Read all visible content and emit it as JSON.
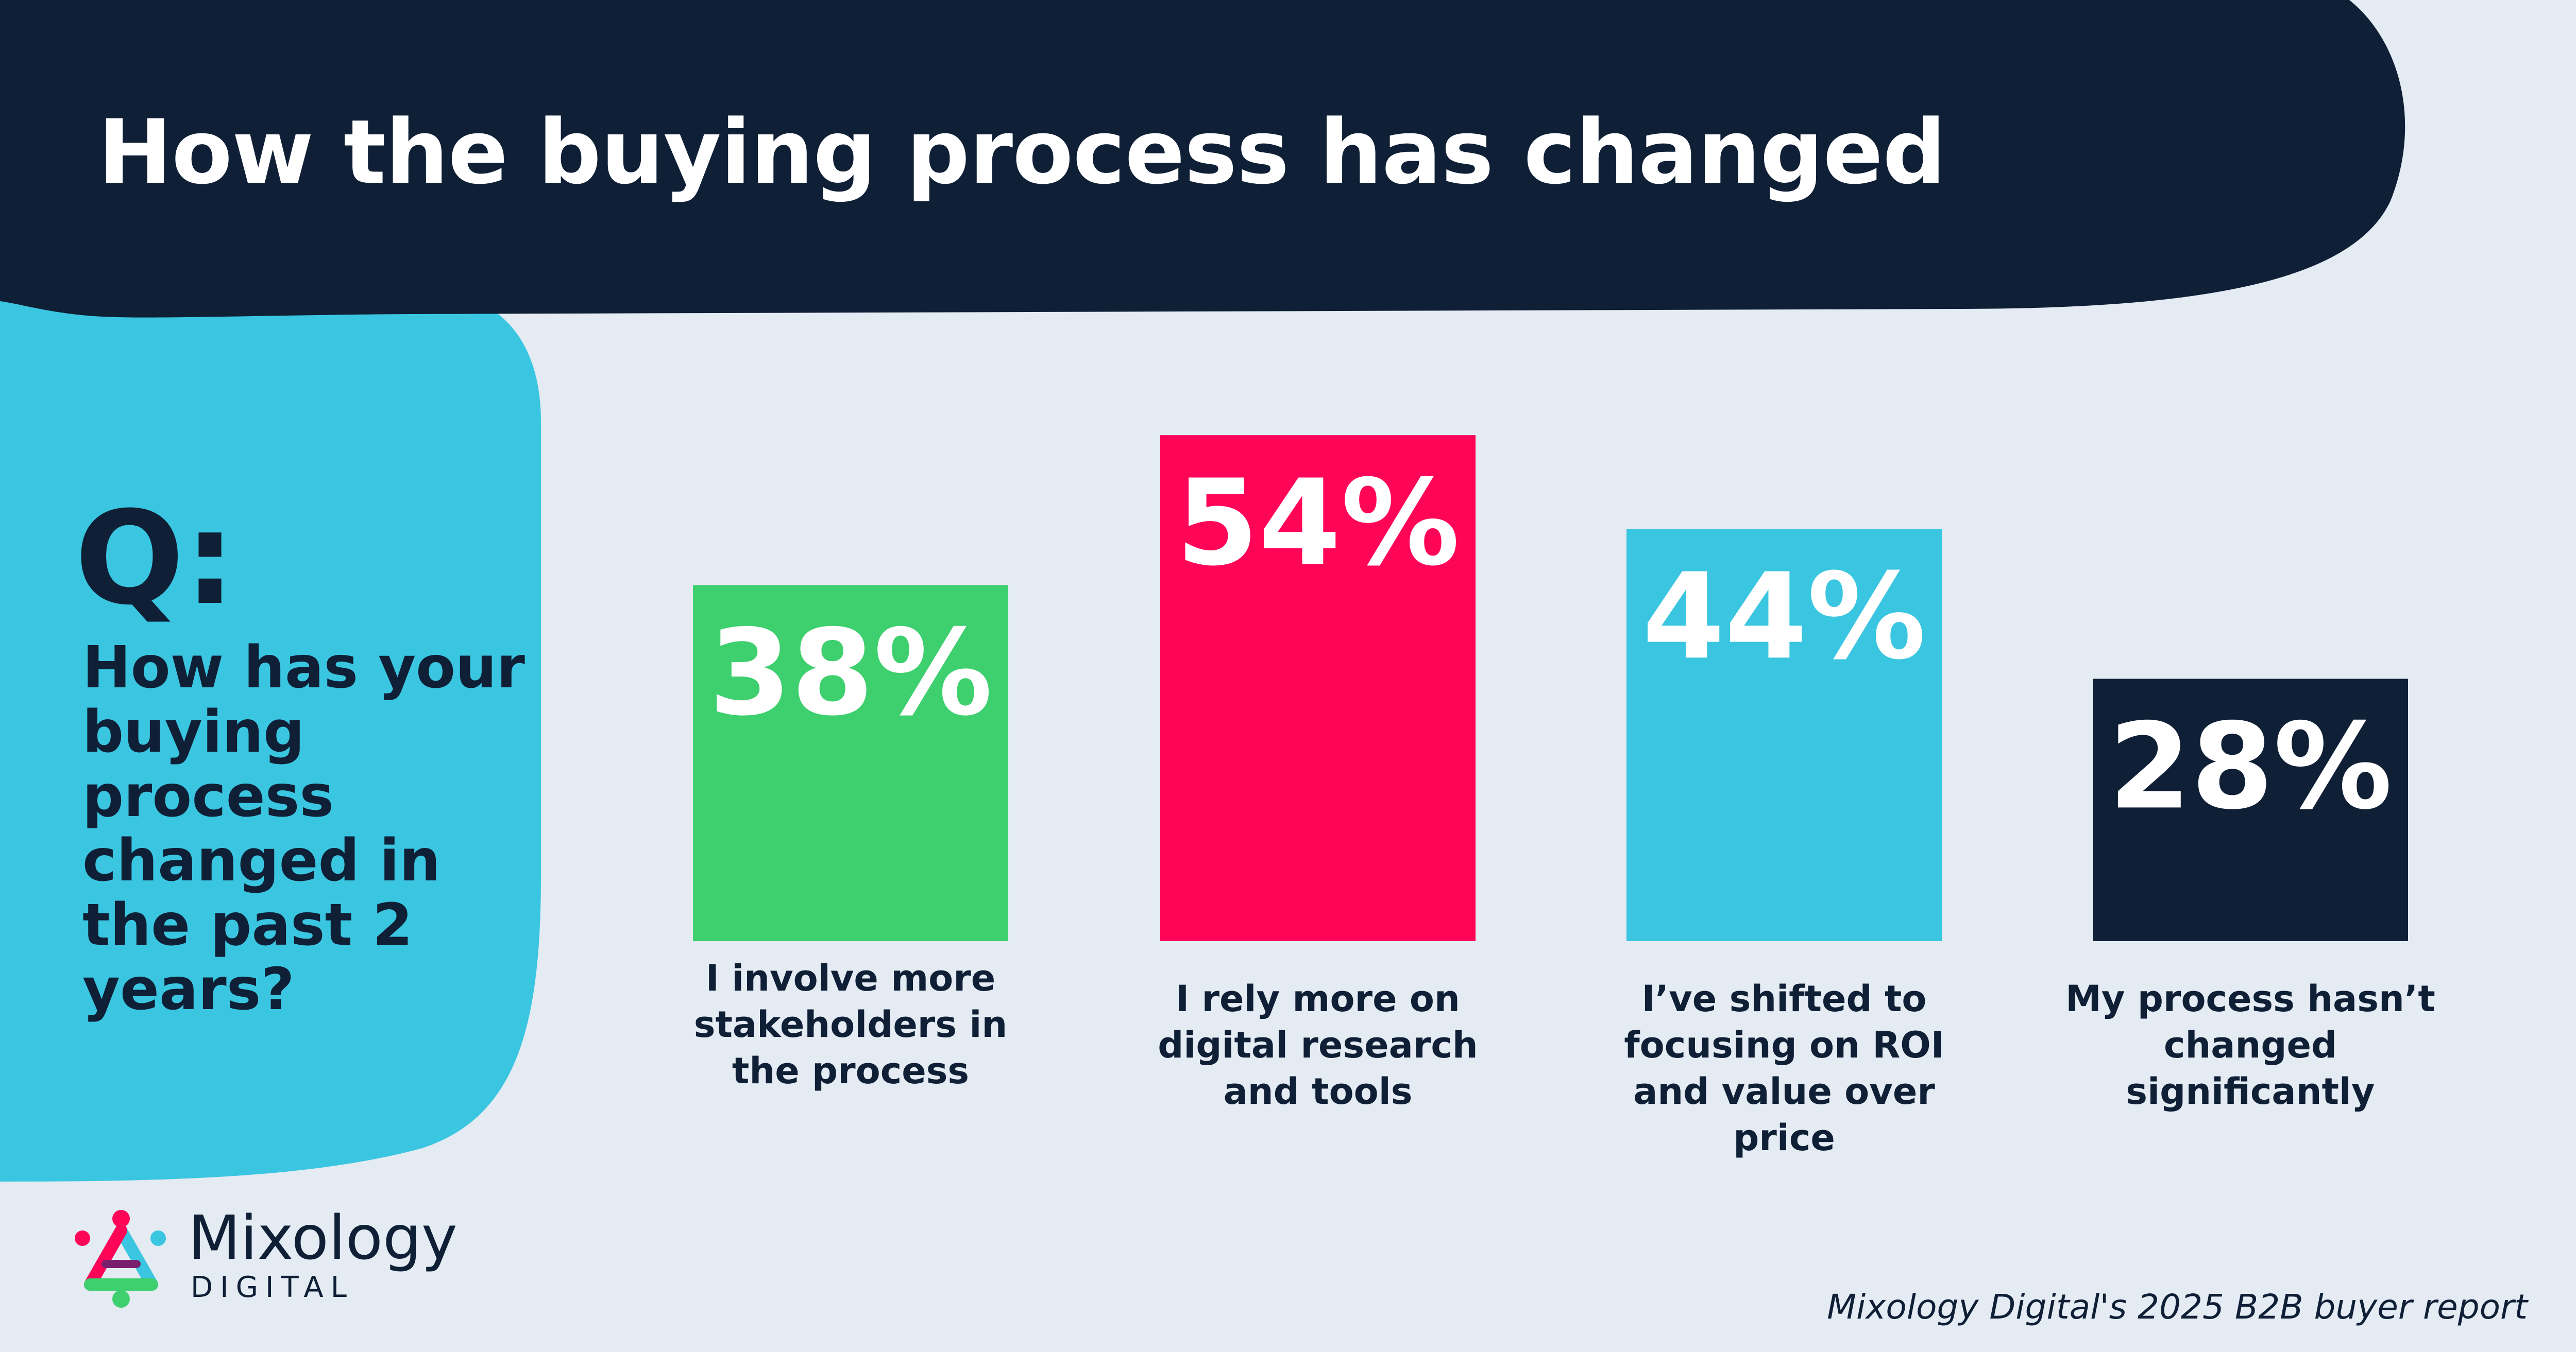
{
  "header": {
    "title": "How the buying process has changed"
  },
  "question": {
    "prefix": "Q:",
    "text": "How has your buying process changed in the past 2 years?"
  },
  "chart_data": {
    "type": "bar",
    "title": "How the buying process has changed",
    "xlabel": "",
    "ylabel": "",
    "ylim": [
      0,
      100
    ],
    "grid": false,
    "categories": [
      "I involve more stakeholders in the process",
      "I rely more on digital research and tools",
      "I’ve shifted to focusing on ROI and value over price",
      "My process hasn’t changed significantly"
    ],
    "values": [
      38,
      54,
      44,
      28
    ],
    "value_labels": [
      "38%",
      "54%",
      "44%",
      "28%"
    ],
    "colors": [
      "#3ecf6e",
      "#ff0558",
      "#3ac6e0",
      "#0f1f36"
    ]
  },
  "brand": {
    "name": "Mixology",
    "sub": "DIGITAL"
  },
  "source": "Mixology Digital's 2025 B2B buyer report",
  "colors": {
    "navy": "#0f1f36",
    "cyan": "#3ac6e0",
    "background": "#e4ebf3"
  },
  "icons": {
    "logo": "mixology-logo-icon"
  }
}
